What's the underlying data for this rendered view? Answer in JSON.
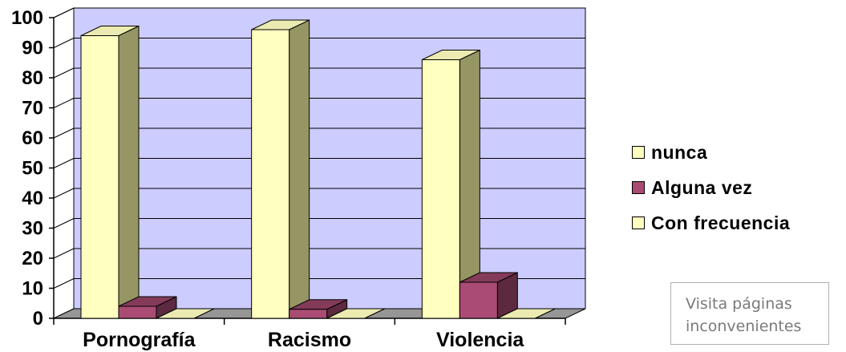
{
  "chart_data": {
    "type": "bar",
    "categories": [
      "Pornografía",
      "Racismo",
      "Violencia"
    ],
    "series": [
      {
        "name": "nunca",
        "values": [
          94,
          96,
          86
        ],
        "color": "#FFFFC0"
      },
      {
        "name": "Alguna vez",
        "values": [
          4,
          3,
          12
        ],
        "color": "#A94B72"
      },
      {
        "name": "Con frecuencia",
        "values": [
          0,
          0,
          0
        ],
        "color": "#FFFFC0"
      }
    ],
    "ylim": [
      0,
      100
    ],
    "yticks": [
      0,
      10,
      20,
      30,
      40,
      50,
      60,
      70,
      80,
      90,
      100
    ],
    "grid": true,
    "legend_position": "right",
    "plot_wall_color": "#CCCCFF",
    "floor_color": "#969696",
    "title": "",
    "xlabel": "",
    "ylabel": ""
  },
  "note": {
    "line1": "Visita páginas",
    "line2": "inconvenientes"
  }
}
